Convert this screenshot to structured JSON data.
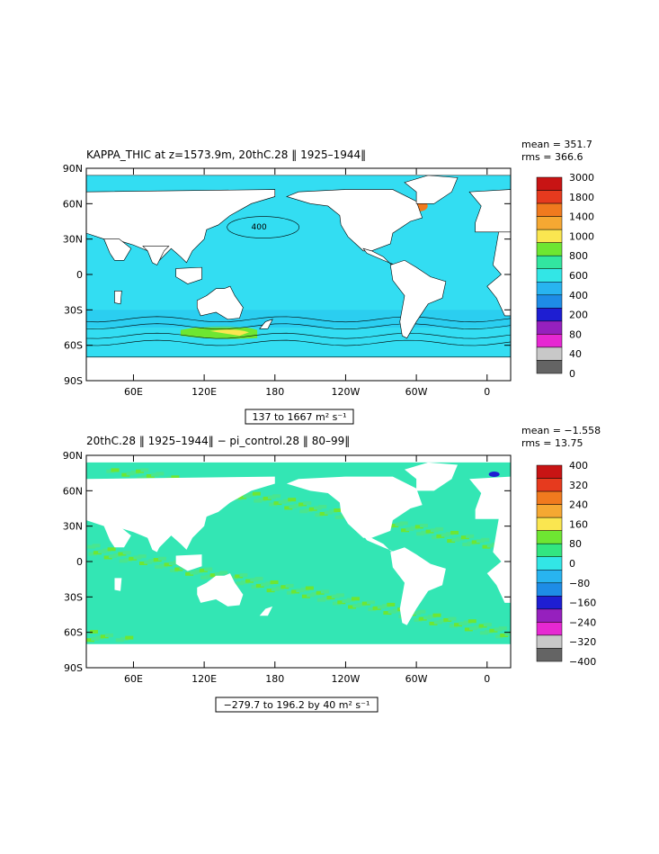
{
  "chart_data": [
    {
      "type": "heatmap",
      "title": "KAPPA_THIC at z=1573.9m, 20thC.28 ‖ 1925–1944‖",
      "stats": {
        "mean": "mean = 351.7",
        "rms": "rms = 366.6"
      },
      "range_label": "137 to 1667 m² s⁻¹",
      "x_ticks": [
        "60E",
        "120E",
        "180",
        "120W",
        "60W",
        "0"
      ],
      "y_ticks": [
        "90N",
        "60N",
        "30N",
        "0",
        "30S",
        "60S",
        "90S"
      ],
      "xlim_lon": [
        20,
        380
      ],
      "ylim_lat": [
        -90,
        90
      ],
      "colorbar": {
        "labels": [
          "3000",
          "1800",
          "1400",
          "1000",
          "800",
          "600",
          "400",
          "200",
          "80",
          "40",
          "0"
        ],
        "colors": [
          "#c81414",
          "#e63a1e",
          "#f07a1e",
          "#f5a832",
          "#fae650",
          "#6ee632",
          "#32e6a0",
          "#32e6e6",
          "#28b4f0",
          "#1e8ce6",
          "#1e1ed2",
          "#9620be",
          "#e628d2",
          "#c8c8c8",
          "#646464"
        ]
      },
      "ocean_color": "#33ddf2",
      "contour_label": "400"
    },
    {
      "type": "heatmap",
      "title": "20thC.28 ‖ 1925–1944‖  −  pi_control.28 ‖ 80–99‖",
      "stats": {
        "mean": "mean = −1.558",
        "rms": "rms = 13.75"
      },
      "range_label": "−279.7 to 196.2 by 40 m² s⁻¹",
      "x_ticks": [
        "60E",
        "120E",
        "180",
        "120W",
        "60W",
        "0"
      ],
      "y_ticks": [
        "90N",
        "60N",
        "30N",
        "0",
        "30S",
        "60S",
        "90S"
      ],
      "xlim_lon": [
        20,
        380
      ],
      "ylim_lat": [
        -90,
        90
      ],
      "colorbar": {
        "labels": [
          "400",
          "320",
          "240",
          "160",
          "80",
          "0",
          "−80",
          "−160",
          "−240",
          "−320",
          "−400"
        ],
        "colors": [
          "#c81414",
          "#e63a1e",
          "#f07a1e",
          "#f5a832",
          "#fae650",
          "#6ee632",
          "#32e680",
          "#32e6e6",
          "#28b4f0",
          "#1e8ce6",
          "#1e1ed2",
          "#9620be",
          "#e628d2",
          "#c8c8c8",
          "#646464"
        ]
      },
      "ocean_color": "#33e6b4"
    }
  ]
}
